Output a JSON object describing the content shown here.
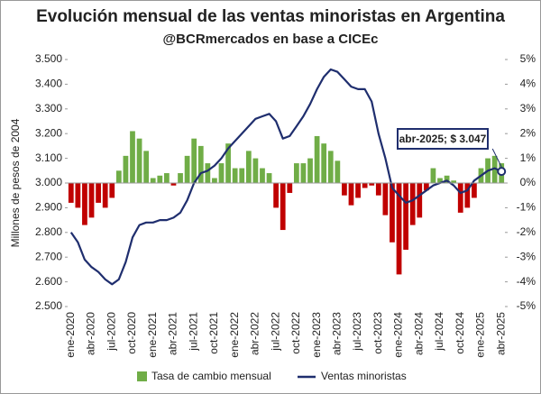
{
  "chart_data": {
    "type": "bar-line",
    "title": "Evolución mensual de las ventas minoristas en Argentina",
    "subtitle": "@BCRmercados en base a CICEc",
    "y_label": "Millones de pesos de 2004",
    "categories": [
      "ene-2020",
      null,
      null,
      "abr-2020",
      null,
      null,
      "jul-2020",
      null,
      null,
      "oct-2020",
      null,
      null,
      "ene-2021",
      null,
      null,
      "abr-2021",
      null,
      null,
      "jul-2021",
      null,
      null,
      "oct-2021",
      null,
      null,
      "ene-2022",
      null,
      null,
      "abr-2022",
      null,
      null,
      "jul-2022",
      null,
      null,
      "oct-2022",
      null,
      null,
      "ene-2023",
      null,
      null,
      "abr-2023",
      null,
      null,
      "jul-2023",
      null,
      null,
      "oct-2023",
      null,
      null,
      "ene-2024",
      null,
      null,
      "abr-2024",
      null,
      null,
      "jul-2024",
      null,
      null,
      "oct-2024",
      null,
      null,
      "ene-2025",
      null,
      null,
      "abr-2025"
    ],
    "series": [
      {
        "name": "Tasa de cambio mensual",
        "type": "bar",
        "axis": "y2",
        "color": "#70ad47",
        "negative_color": "#c00000",
        "values": [
          -0.8,
          -1.0,
          -1.7,
          -1.4,
          -0.8,
          -1.0,
          -0.6,
          0.5,
          1.1,
          2.1,
          1.8,
          1.3,
          0.2,
          0.3,
          0.4,
          -0.1,
          0.4,
          1.1,
          1.8,
          1.5,
          0.8,
          0.2,
          0.8,
          1.6,
          0.6,
          0.6,
          1.3,
          1.0,
          0.6,
          0.4,
          -1.0,
          -1.9,
          -0.4,
          0.8,
          0.8,
          1.0,
          1.9,
          1.6,
          1.3,
          0.9,
          -0.5,
          -0.9,
          -0.6,
          -0.2,
          -0.1,
          -0.5,
          -1.3,
          -2.4,
          -3.7,
          -2.7,
          -1.7,
          -1.4,
          -0.3,
          0.6,
          0.2,
          0.3,
          0.1,
          -1.2,
          -1.0,
          -0.6,
          0.6,
          1.0,
          1.1,
          0.8
        ]
      },
      {
        "name": "Ventas minoristas",
        "type": "line",
        "color": "#1f2e6e",
        "values": [
          2800,
          2760,
          2690,
          2660,
          2640,
          2610,
          2590,
          2610,
          2680,
          2780,
          2830,
          2840,
          2840,
          2850,
          2850,
          2860,
          2880,
          2930,
          3000,
          3040,
          3050,
          3070,
          3100,
          3140,
          3170,
          3200,
          3230,
          3260,
          3270,
          3280,
          3250,
          3180,
          3190,
          3230,
          3270,
          3320,
          3380,
          3430,
          3460,
          3450,
          3420,
          3390,
          3380,
          3380,
          3330,
          3200,
          3100,
          2980,
          2950,
          2920,
          2930,
          2950,
          2970,
          2990,
          3000,
          3010,
          2990,
          2960,
          2970,
          3010,
          3030,
          3050,
          3060,
          3047
        ]
      }
    ],
    "annotation": "abr-2025; $ 3.047",
    "ylim": [
      2500,
      3500
    ],
    "yticks": [
      {
        "value": 2500,
        "label": "2.500"
      },
      {
        "value": 2600,
        "label": "2.600"
      },
      {
        "value": 2700,
        "label": "2.700"
      },
      {
        "value": 2800,
        "label": "2.800"
      },
      {
        "value": 2900,
        "label": "2.900"
      },
      {
        "value": 3000,
        "label": "3.000"
      },
      {
        "value": 3100,
        "label": "3.100"
      },
      {
        "value": 3200,
        "label": "3.200"
      },
      {
        "value": 3300,
        "label": "3.300"
      },
      {
        "value": 3400,
        "label": "3.400"
      },
      {
        "value": 3500,
        "label": "3.500"
      }
    ],
    "y2lim": [
      -5,
      5
    ],
    "y2ticks": [
      {
        "value": -5,
        "label": "-5%"
      },
      {
        "value": -4,
        "label": "-4%"
      },
      {
        "value": -3,
        "label": "-3%"
      },
      {
        "value": -2,
        "label": "-2%"
      },
      {
        "value": -1,
        "label": "-1%"
      },
      {
        "value": 0,
        "label": "0%"
      },
      {
        "value": 1,
        "label": "1%"
      },
      {
        "value": 2,
        "label": "2%"
      },
      {
        "value": 3,
        "label": "3%"
      },
      {
        "value": 4,
        "label": "4%"
      },
      {
        "value": 5,
        "label": "5%"
      }
    ],
    "legend": "bottom"
  }
}
